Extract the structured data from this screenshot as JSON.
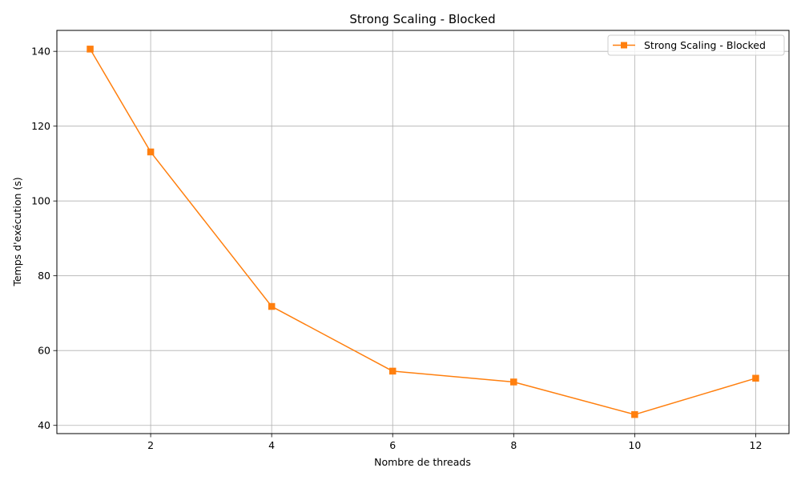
{
  "chart_data": {
    "type": "line",
    "title": "Strong Scaling - Blocked",
    "xlabel": "Nombre de threads",
    "ylabel": "Temps d'exécution (s)",
    "xlim": [
      0.45,
      12.55
    ],
    "ylim": [
      37.8,
      145.6
    ],
    "xticks": [
      2,
      4,
      6,
      8,
      10,
      12
    ],
    "yticks": [
      40,
      60,
      80,
      100,
      120,
      140
    ],
    "grid": true,
    "legend_position": "upper right",
    "series": [
      {
        "name": "Strong Scaling - Blocked",
        "color": "#ff7f0e",
        "marker": "square",
        "x": [
          1,
          2,
          4,
          6,
          8,
          10,
          12
        ],
        "y": [
          140.6,
          113.1,
          71.8,
          54.5,
          51.6,
          42.9,
          52.6
        ]
      }
    ]
  }
}
